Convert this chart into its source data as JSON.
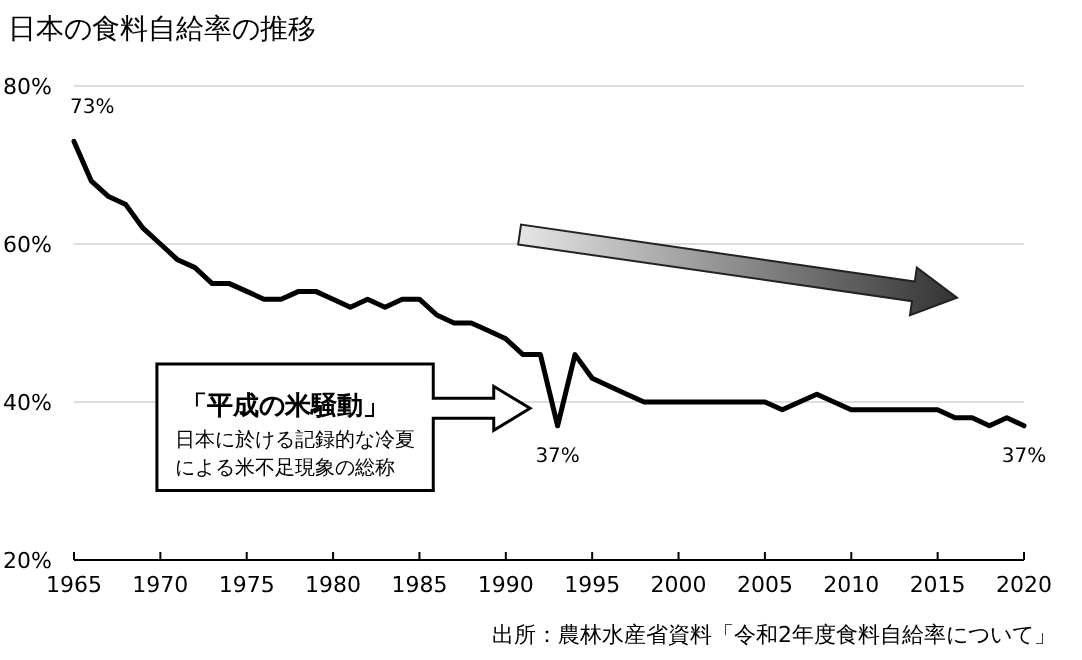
{
  "chart_data": {
    "type": "line",
    "title": "日本の食料自給率の推移",
    "x": [
      1965,
      1966,
      1967,
      1968,
      1969,
      1970,
      1971,
      1972,
      1973,
      1974,
      1975,
      1976,
      1977,
      1978,
      1979,
      1980,
      1981,
      1982,
      1983,
      1984,
      1985,
      1986,
      1987,
      1988,
      1989,
      1990,
      1991,
      1992,
      1993,
      1994,
      1995,
      1996,
      1997,
      1998,
      1999,
      2000,
      2001,
      2002,
      2003,
      2004,
      2005,
      2006,
      2007,
      2008,
      2009,
      2010,
      2011,
      2012,
      2013,
      2014,
      2015,
      2016,
      2017,
      2018,
      2019,
      2020
    ],
    "series": [
      {
        "color": "#000000",
        "values": [
          73,
          68,
          66,
          65,
          62,
          60,
          58,
          57,
          55,
          55,
          54,
          53,
          53,
          54,
          54,
          53,
          52,
          53,
          52,
          53,
          53,
          51,
          50,
          50,
          49,
          48,
          46,
          46,
          37,
          46,
          43,
          42,
          41,
          40,
          40,
          40,
          40,
          40,
          40,
          40,
          40,
          39,
          40,
          41,
          40,
          39,
          39,
          39,
          39,
          39,
          39,
          38,
          38,
          37,
          38,
          37
        ]
      }
    ],
    "xlim": [
      1965,
      2020
    ],
    "xticks": [
      1965,
      1970,
      1975,
      1980,
      1985,
      1990,
      1995,
      2000,
      2005,
      2010,
      2015,
      2020
    ],
    "ylim": [
      20,
      80
    ],
    "yticks": [
      {
        "value": 20,
        "label": "20%"
      },
      {
        "value": 40,
        "label": "40%"
      },
      {
        "value": 60,
        "label": "60%"
      },
      {
        "value": 80,
        "label": "80%"
      }
    ],
    "grid": "y",
    "marker": "none",
    "line_style": "solid",
    "annotations": [
      {
        "text": "73%",
        "x": 1965,
        "y": 73
      },
      {
        "text": "37%",
        "x": 1993,
        "y": 37
      },
      {
        "text": "37%",
        "x": 2020,
        "y": 37
      },
      "「平成の米騒動」",
      "日本に於ける記録的な冷夏",
      "による米不足現象の総称",
      "出所：農林水産省資料「令和2年度食料自給率について」"
    ]
  }
}
